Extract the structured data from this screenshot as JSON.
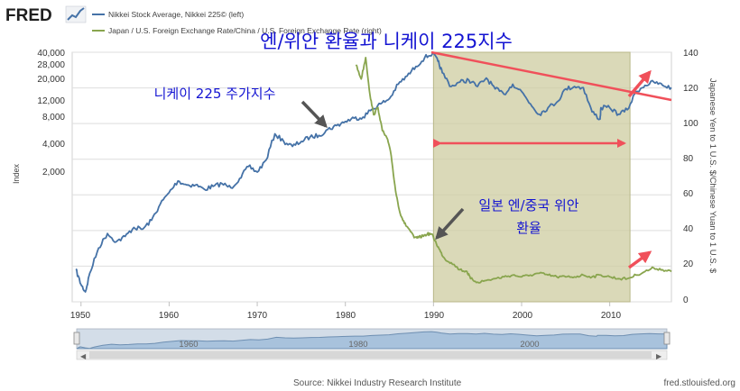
{
  "header": {
    "brand": "FRED",
    "legend": [
      {
        "label": "Nikkei Stock Average, Nikkei 225© (left)",
        "color": "#4572a7"
      },
      {
        "label": "Japan / U.S. Foreign Exchange Rate/China / U.S. Foreign Exchange Rate (right)",
        "color": "#89a54e"
      }
    ]
  },
  "annotations": {
    "title": "엔/위안 환율과 니케이 225지수",
    "nikkei_note": "니케이 225 주가지수",
    "fx_note_line1": "일본 엔/중국 위안",
    "fx_note_line2": "환율"
  },
  "axes": {
    "ylabel_left": "Index",
    "ylabel_right": "Japanese Yen to 1 U.S. $/Chinese Yuan to 1 U.S. $",
    "left_ticks": [
      "40,000",
      "28,000",
      "20,000",
      "12,000",
      "8,000",
      "4,000",
      "2,000"
    ],
    "right_ticks": [
      "140",
      "120",
      "100",
      "80",
      "60",
      "40",
      "20",
      "0"
    ],
    "x_ticks": [
      "1950",
      "1960",
      "1970",
      "1980",
      "1990",
      "2000",
      "2010"
    ]
  },
  "navigator": {
    "labels": [
      "1960",
      "1980",
      "2000"
    ]
  },
  "footer": {
    "source": "Source: Nikkei Industry Research Institute",
    "site": "fred.stlouisfed.org"
  },
  "colors": {
    "nikkei": "#4572a7",
    "fx": "#89a54e",
    "highlight": "#cdcca0",
    "arrow": "#f0505a",
    "note_text": "#1414d2"
  },
  "chart_data": {
    "type": "line",
    "xlim": [
      1949,
      2017
    ],
    "left_scale": "log",
    "left_tick_values": [
      40000,
      28000,
      20000,
      12000,
      8000,
      4000,
      2000
    ],
    "right_ylim": [
      0,
      140
    ],
    "grid": true,
    "shaded_region": [
      1990,
      2012.3
    ],
    "series": [
      {
        "name": "Nikkei Stock Average, Nikkei 225© (left)",
        "axis": "left",
        "x": [
          1949.4,
          1950,
          1950.5,
          1951,
          1952,
          1953,
          1954,
          1955,
          1956,
          1957,
          1958,
          1959,
          1960,
          1961,
          1962,
          1963,
          1964,
          1965,
          1966,
          1967,
          1968,
          1969,
          1970,
          1971,
          1972,
          1973,
          1974,
          1975,
          1976,
          1977,
          1978,
          1979,
          1980,
          1981,
          1982,
          1983,
          1984,
          1985,
          1986,
          1987,
          1988,
          1989,
          1989.9,
          1990.5,
          1991,
          1992,
          1993,
          1994,
          1995,
          1996,
          1997,
          1998,
          1999,
          2000,
          2001,
          2002,
          2003,
          2004,
          2005,
          2006,
          2007,
          2008,
          2008.9,
          2009,
          2010,
          2011,
          2012,
          2013,
          2014,
          2015,
          2016,
          2017
        ],
        "y": [
          176,
          120,
          100,
          160,
          300,
          430,
          350,
          400,
          500,
          480,
          600,
          900,
          1200,
          1600,
          1450,
          1450,
          1300,
          1400,
          1500,
          1350,
          1700,
          2300,
          2000,
          2700,
          5200,
          4300,
          3800,
          4300,
          4800,
          5000,
          5800,
          6400,
          7100,
          7700,
          7900,
          9600,
          11000,
          12500,
          18000,
          22000,
          28000,
          35000,
          38900,
          32000,
          24000,
          17000,
          19000,
          20000,
          17000,
          21000,
          16000,
          14000,
          18000,
          15000,
          11000,
          8500,
          10000,
          11500,
          16000,
          17000,
          16500,
          9000,
          7500,
          10000,
          10000,
          8500,
          9500,
          15000,
          17500,
          19000,
          17500,
          16500
        ]
      },
      {
        "name": "Japan / U.S. Foreign Exchange Rate/China / U.S. Foreign Exchange Rate (right)",
        "axis": "right",
        "x": [
          1981.2,
          1981.8,
          1982.3,
          1982.8,
          1983.2,
          1983.7,
          1984.2,
          1984.8,
          1985.2,
          1985.7,
          1986.2,
          1986.7,
          1987.2,
          1987.8,
          1988.3,
          1988.8,
          1989.3,
          1989.8,
          1990.3,
          1990.8,
          1991.3,
          1992,
          1993,
          1993.8,
          1994.2,
          1995,
          1996,
          1997,
          1998,
          1999,
          2000,
          2001,
          2002,
          2003,
          2004,
          2005,
          2006,
          2007,
          2008,
          2009,
          2010,
          2011,
          2012,
          2013,
          2014,
          2015,
          2016,
          2017
        ],
        "y": [
          133,
          125,
          137,
          116,
          105,
          109,
          96,
          91,
          82,
          62,
          50,
          44,
          41,
          36,
          36,
          37,
          38,
          38,
          33,
          28,
          24,
          22,
          18,
          17,
          13,
          11,
          12,
          13,
          14,
          15,
          14,
          15,
          16,
          15,
          14,
          14,
          14,
          15,
          14,
          15,
          14,
          13,
          13,
          15,
          17,
          19,
          18,
          17
        ]
      }
    ]
  }
}
